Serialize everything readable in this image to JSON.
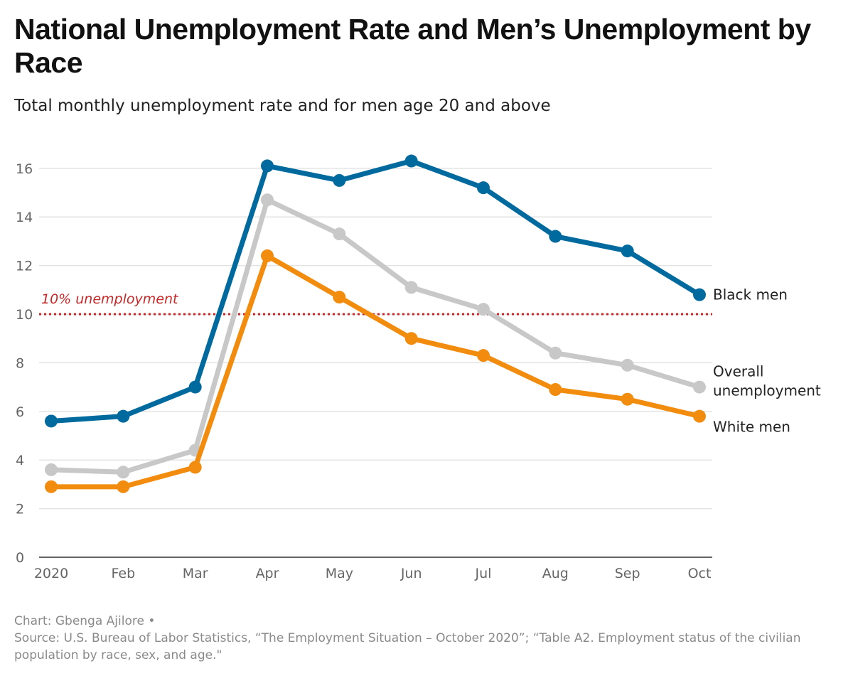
{
  "chart_data": {
    "type": "line",
    "title": "National Unemployment Rate and Men’s Unemployment by Race",
    "subtitle": "Total monthly unemployment rate and for men age 20 and above",
    "categories": [
      "2020",
      "Feb",
      "Mar",
      "Apr",
      "May",
      "Jun",
      "Jul",
      "Aug",
      "Sep",
      "Oct"
    ],
    "ylim": [
      0,
      17
    ],
    "yticks": [
      0,
      2,
      4,
      6,
      8,
      10,
      12,
      14,
      16
    ],
    "grid": true,
    "series": [
      {
        "name": "Overall unemployment",
        "label_lines": [
          "Overall",
          "unemployment"
        ],
        "color": "#c8c8c8",
        "values": [
          3.6,
          3.5,
          4.4,
          14.7,
          13.3,
          11.1,
          10.2,
          8.4,
          7.9,
          7.0
        ]
      },
      {
        "name": "White men",
        "label_lines": [
          "White men"
        ],
        "color": "#f28c0f",
        "values": [
          2.9,
          2.9,
          3.7,
          12.4,
          10.7,
          9.0,
          8.3,
          6.9,
          6.5,
          5.8
        ]
      },
      {
        "name": "Black men",
        "label_lines": [
          "Black men"
        ],
        "color": "#006a9e",
        "values": [
          5.6,
          5.8,
          7.0,
          16.1,
          15.5,
          16.3,
          15.2,
          13.2,
          12.6,
          10.8
        ]
      }
    ],
    "reference_line": {
      "value": 10,
      "label": "10% unemployment",
      "color": "#c62828"
    }
  },
  "footer": {
    "credit": "Chart: Gbenga Ajilore •",
    "source": "Source: U.S. Bureau of Labor Statistics, “The Employment Situation – October 2020”; “Table A2. Employment status of the civilian population by race, sex, and age.\""
  }
}
